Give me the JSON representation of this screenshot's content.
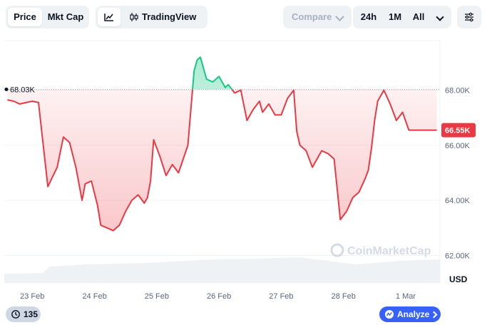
{
  "toolbar": {
    "price_tab": "Price",
    "mktcap_tab": "Mkt Cap",
    "tradingview_label": "TradingView",
    "compare_label": "Compare",
    "range_24h": "24h",
    "range_1m": "1M",
    "range_all": "All"
  },
  "chart": {
    "current_price_label": "66.55K",
    "reference_price_label": "68.03K",
    "currency_label": "USD",
    "watermark": "CoinMarketCap",
    "colors": {
      "up": "#16c784",
      "down": "#ea3943",
      "label_bg": "#ea3943"
    }
  },
  "footer": {
    "views_count": "135",
    "analyze_label": "Analyze"
  },
  "chart_data": {
    "type": "area",
    "y_unit": "USD",
    "ylim": [
      61000,
      69800
    ],
    "y_ticks": [
      62000,
      64000,
      66000,
      68000
    ],
    "y_tick_labels": [
      "62.00K",
      "64.00K",
      "66.00K",
      "68.00K"
    ],
    "x_tick_labels": [
      "23 Feb",
      "24 Feb",
      "25 Feb",
      "26 Feb",
      "27 Feb",
      "28 Feb",
      "1 Mar"
    ],
    "x_tick_positions": [
      0.5,
      1.5,
      2.5,
      3.5,
      4.5,
      5.5,
      6.5
    ],
    "x_range": [
      0.05,
      7.05
    ],
    "reference_value": 68030,
    "last_value": 66550,
    "series": [
      {
        "x": [
          0.1,
          0.2,
          0.3,
          0.4,
          0.5,
          0.6,
          0.75,
          0.9,
          1.0,
          1.1,
          1.2,
          1.3,
          1.35,
          1.45,
          1.55,
          1.6,
          1.7,
          1.8,
          1.9,
          2.0,
          2.1,
          2.2,
          2.3,
          2.35,
          2.4,
          2.45,
          2.55,
          2.65,
          2.75,
          2.85,
          3.0,
          3.1,
          3.15,
          3.2,
          3.3,
          3.4,
          3.5,
          3.6,
          3.65,
          3.75,
          3.85,
          3.95,
          4.05,
          4.15,
          4.2,
          4.3,
          4.4,
          4.5,
          4.6,
          4.7,
          4.75,
          4.8,
          4.9,
          5.0,
          5.1,
          5.15,
          5.25,
          5.35,
          5.45,
          5.55,
          5.65,
          5.75,
          5.85,
          5.9,
          5.95,
          6.0,
          6.05,
          6.15,
          6.25,
          6.35,
          6.45,
          6.55,
          6.65,
          6.72,
          6.8,
          6.9,
          7.0
        ],
        "y": [
          67650,
          67600,
          67500,
          67550,
          67600,
          67550,
          64500,
          65200,
          66300,
          66100,
          65200,
          64000,
          64600,
          64700,
          63800,
          63100,
          63000,
          62900,
          63100,
          63600,
          64000,
          64200,
          63900,
          64100,
          64700,
          66200,
          65600,
          64900,
          65300,
          65000,
          66000,
          68700,
          69100,
          69200,
          68400,
          68300,
          68500,
          68100,
          68200,
          67900,
          68000,
          66900,
          67300,
          67600,
          67200,
          67500,
          67100,
          67100,
          67700,
          68000,
          66500,
          66000,
          65800,
          65200,
          65600,
          65800,
          65700,
          65500,
          63300,
          63600,
          64100,
          64300,
          64800,
          65100,
          65900,
          66900,
          67600,
          68000,
          67500,
          66900,
          67200,
          66550,
          66550,
          66550,
          66550,
          66550,
          66550
        ]
      }
    ]
  }
}
